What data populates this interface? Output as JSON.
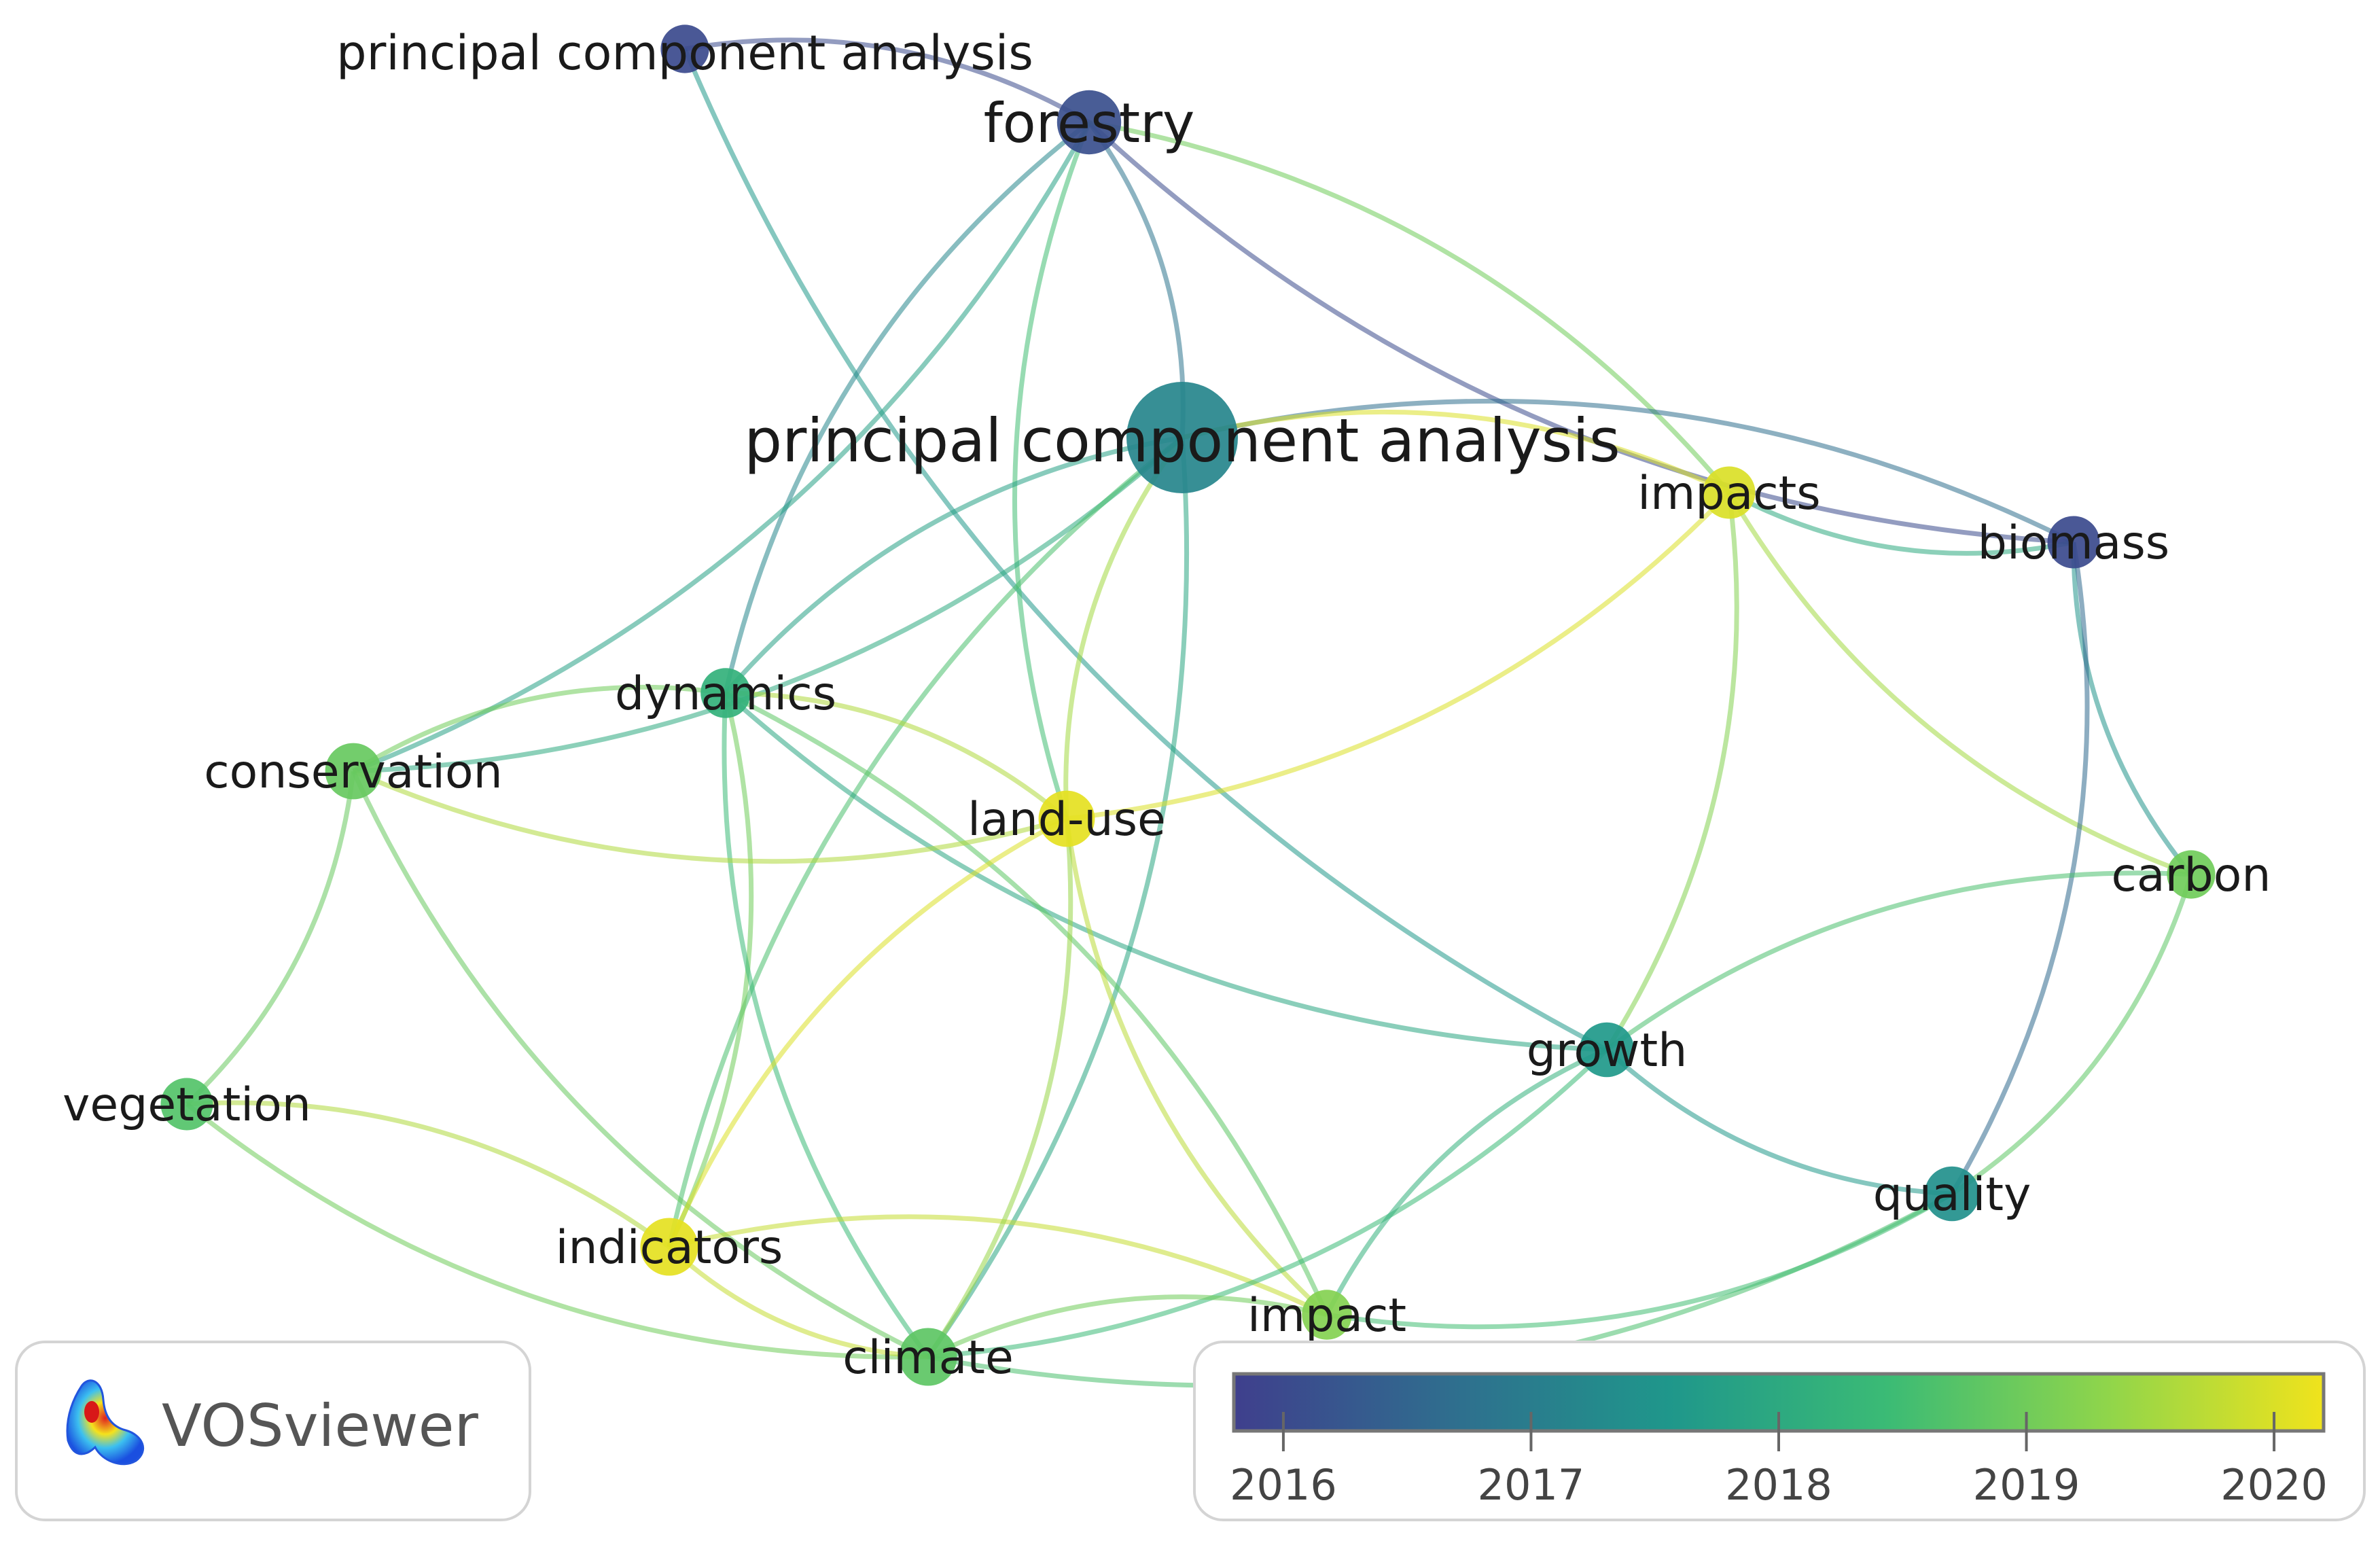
{
  "nodes": [
    {
      "id": "pca_top",
      "label": "principal component analysis",
      "year": 2016.0,
      "weight": 2
    },
    {
      "id": "forestry",
      "label": "forestry",
      "year": 2016.1,
      "weight": 4
    },
    {
      "id": "pca_main",
      "label": "principal component analysis",
      "year": 2017.2,
      "weight": 10
    },
    {
      "id": "impacts",
      "label": "impacts",
      "year": 2020.0,
      "weight": 2.5
    },
    {
      "id": "biomass",
      "label": "biomass",
      "year": 2016.0,
      "weight": 2.5
    },
    {
      "id": "dynamics",
      "label": "dynamics",
      "year": 2018.2,
      "weight": 2.2
    },
    {
      "id": "conservation",
      "label": "conservation",
      "year": 2018.9,
      "weight": 3
    },
    {
      "id": "landuse",
      "label": "land-use",
      "year": 2020.1,
      "weight": 3
    },
    {
      "id": "carbon",
      "label": "carbon",
      "year": 2019.0,
      "weight": 2
    },
    {
      "id": "growth",
      "label": "growth",
      "year": 2017.6,
      "weight": 2.8
    },
    {
      "id": "vegetation",
      "label": "vegetation",
      "year": 2018.7,
      "weight": 2.5
    },
    {
      "id": "quality",
      "label": "quality",
      "year": 2017.4,
      "weight": 2.8
    },
    {
      "id": "indicators",
      "label": "indicators",
      "year": 2020.1,
      "weight": 3.2
    },
    {
      "id": "impact",
      "label": "impact",
      "year": 2019.2,
      "weight": 2.2
    },
    {
      "id": "climate",
      "label": "climate",
      "year": 2018.8,
      "weight": 3.2
    }
  ],
  "links": [
    [
      "pca_top",
      "forestry",
      2016.0
    ],
    [
      "pca_top",
      "growth",
      2017.6
    ],
    [
      "forestry",
      "pca_main",
      2016.8
    ],
    [
      "forestry",
      "biomass",
      2016.0
    ],
    [
      "forestry",
      "impacts",
      2019.0
    ],
    [
      "forestry",
      "dynamics",
      2017.2
    ],
    [
      "forestry",
      "conservation",
      2017.8
    ],
    [
      "forestry",
      "landuse",
      2018.5
    ],
    [
      "pca_main",
      "biomass",
      2016.7
    ],
    [
      "pca_main",
      "dynamics",
      2017.8
    ],
    [
      "pca_main",
      "conservation",
      2018.0
    ],
    [
      "pca_main",
      "landuse",
      2019.5
    ],
    [
      "pca_main",
      "impacts",
      2020.0
    ],
    [
      "pca_main",
      "indicators",
      2018.6
    ],
    [
      "pca_main",
      "climate",
      2017.9
    ],
    [
      "impacts",
      "biomass",
      2018.0
    ],
    [
      "impacts",
      "landuse",
      2020.0
    ],
    [
      "impacts",
      "carbon",
      2019.5
    ],
    [
      "impacts",
      "growth",
      2019.2
    ],
    [
      "biomass",
      "carbon",
      2017.5
    ],
    [
      "biomass",
      "quality",
      2016.6
    ],
    [
      "dynamics",
      "conservation",
      2019.0
    ],
    [
      "dynamics",
      "landuse",
      2019.6
    ],
    [
      "dynamics",
      "growth",
      2017.9
    ],
    [
      "dynamics",
      "indicators",
      2019.0
    ],
    [
      "dynamics",
      "climate",
      2018.4
    ],
    [
      "dynamics",
      "impact",
      2018.8
    ],
    [
      "conservation",
      "landuse",
      2019.6
    ],
    [
      "conservation",
      "vegetation",
      2018.9
    ],
    [
      "conservation",
      "climate",
      2018.9
    ],
    [
      "vegetation",
      "indicators",
      2019.6
    ],
    [
      "vegetation",
      "climate",
      2019.0
    ],
    [
      "indicators",
      "landuse",
      2020.0
    ],
    [
      "indicators",
      "climate",
      2019.8
    ],
    [
      "indicators",
      "impact",
      2019.8
    ],
    [
      "landuse",
      "impact",
      2019.7
    ],
    [
      "landuse",
      "climate",
      2019.4
    ],
    [
      "climate",
      "growth",
      2018.4
    ],
    [
      "climate",
      "impact",
      2019.0
    ],
    [
      "climate",
      "quality",
      2018.6
    ],
    [
      "impact",
      "growth",
      2018.2
    ],
    [
      "impact",
      "quality",
      2018.5
    ],
    [
      "growth",
      "carbon",
      2018.6
    ],
    [
      "growth",
      "quality",
      2017.6
    ],
    [
      "carbon",
      "quality",
      2018.8
    ]
  ],
  "colorbar": {
    "ticks": [
      "2016",
      "2017",
      "2018",
      "2019",
      "2020"
    ],
    "stops": [
      "#3f3f8d",
      "#2f6e8e",
      "#1f978b",
      "#3bbb75",
      "#8fd54b",
      "#f0e31c"
    ]
  },
  "branding": {
    "name": "VOSviewer",
    "logo_icon": "vosviewer-density-logo-icon"
  }
}
